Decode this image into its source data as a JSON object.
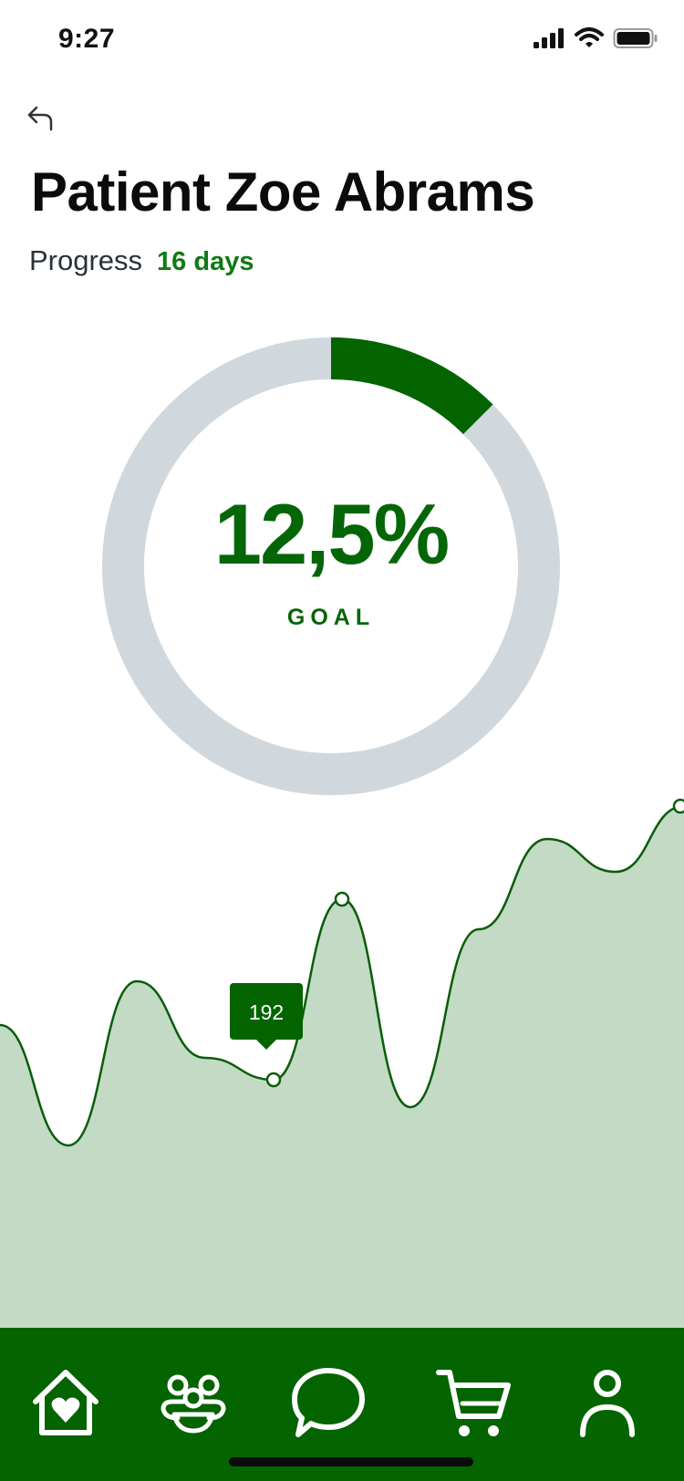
{
  "status_bar": {
    "time": "9:27"
  },
  "header": {
    "title": "Patient Zoe Abrams",
    "progress_label": "Progress",
    "progress_value": "16 days"
  },
  "goal_ring": {
    "percent_text": "12,5%",
    "percent_value": 0.125,
    "label": "GOAL"
  },
  "chart_data": {
    "type": "area",
    "values": [
      212,
      168,
      228,
      200,
      192,
      258,
      182,
      247,
      280,
      268,
      292
    ],
    "highlight_index": 4,
    "tooltip_value": "192"
  },
  "colors": {
    "primary": "#036400",
    "accent_text": "#0f7a13",
    "ring_track": "#d0d8dd",
    "area_fill": "#c3dbc4"
  },
  "nav": {
    "items": [
      {
        "icon": "home-heart-icon"
      },
      {
        "icon": "community-icon"
      },
      {
        "icon": "chat-icon"
      },
      {
        "icon": "cart-icon"
      },
      {
        "icon": "profile-icon"
      }
    ]
  }
}
